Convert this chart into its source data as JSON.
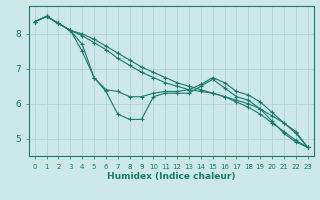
{
  "xlabel": "Humidex (Indice chaleur)",
  "bg_color": "#cce8e8",
  "grid_color": "#aacfcf",
  "line_color": "#1a7a6e",
  "xlim": [
    -0.5,
    23.5
  ],
  "ylim": [
    4.5,
    8.8
  ],
  "yticks": [
    5,
    6,
    7,
    8
  ],
  "xticks": [
    0,
    1,
    2,
    3,
    4,
    5,
    6,
    7,
    8,
    9,
    10,
    11,
    12,
    13,
    14,
    15,
    16,
    17,
    18,
    19,
    20,
    21,
    22,
    23
  ],
  "series": [
    [
      8.35,
      8.5,
      8.3,
      8.1,
      8.0,
      7.85,
      7.65,
      7.45,
      7.25,
      7.05,
      6.9,
      6.75,
      6.6,
      6.5,
      6.4,
      6.3,
      6.2,
      6.1,
      6.0,
      5.85,
      5.65,
      5.45,
      5.2,
      4.75
    ],
    [
      8.35,
      8.5,
      8.3,
      8.1,
      7.95,
      7.75,
      7.55,
      7.3,
      7.1,
      6.9,
      6.75,
      6.6,
      6.5,
      6.4,
      6.35,
      6.3,
      6.2,
      6.05,
      5.9,
      5.7,
      5.45,
      5.2,
      4.95,
      4.75
    ],
    [
      8.35,
      8.5,
      8.3,
      8.1,
      7.7,
      6.75,
      6.4,
      6.35,
      6.2,
      6.2,
      6.3,
      6.35,
      6.35,
      6.4,
      6.55,
      6.75,
      6.6,
      6.35,
      6.25,
      6.05,
      5.75,
      5.45,
      5.15,
      4.75
    ],
    [
      8.35,
      8.5,
      8.3,
      8.1,
      7.5,
      6.75,
      6.35,
      5.7,
      5.55,
      5.55,
      6.2,
      6.3,
      6.3,
      6.3,
      6.5,
      6.7,
      6.45,
      6.2,
      6.1,
      5.85,
      5.5,
      5.15,
      4.9,
      4.75
    ]
  ]
}
